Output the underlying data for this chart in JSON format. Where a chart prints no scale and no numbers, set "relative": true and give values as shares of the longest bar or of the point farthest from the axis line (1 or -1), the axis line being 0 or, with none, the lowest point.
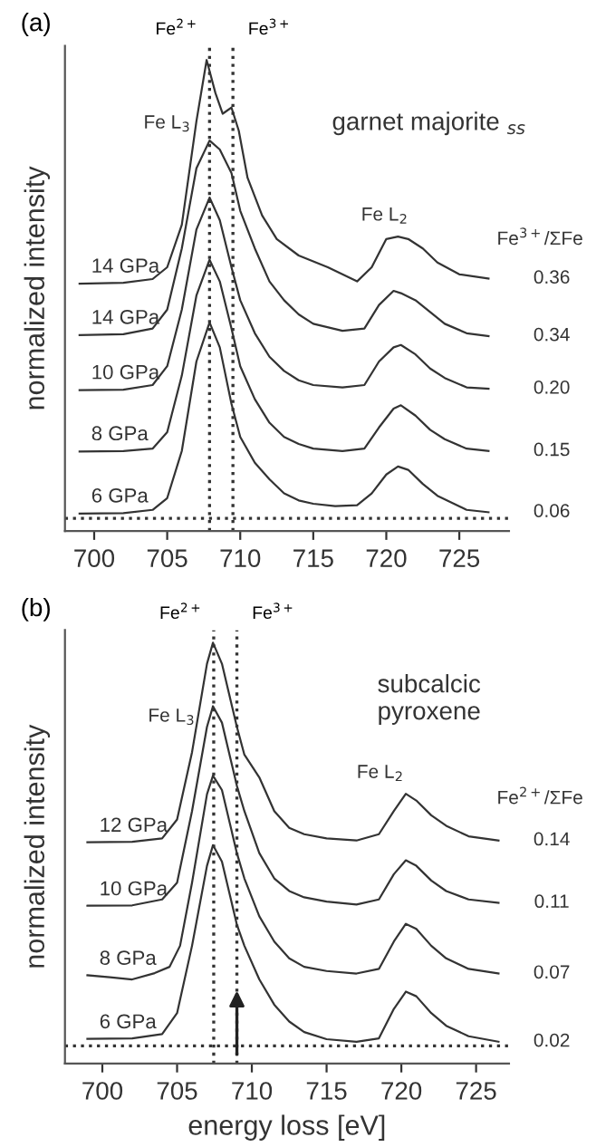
{
  "chart_data": [
    {
      "type": "line",
      "title": "(a)",
      "subtitle": "garnet majorite $_{ss}$",
      "ylabel": "normalized intensity",
      "relative": true,
      "xlim": [
        698,
        728.4
      ],
      "xticks": [
        700,
        705,
        710,
        715,
        720,
        725
      ],
      "grid": false,
      "legend": false,
      "marker": "none",
      "line_style": "solid",
      "ref_lines": [
        {
          "axis": "x",
          "value": 707.9,
          "label": "Fe$^{2+}$",
          "line_style": "dotted",
          "color": "#333333"
        },
        {
          "axis": "x",
          "value": 709.5,
          "label": "Fe$^{3+}$",
          "line_style": "dotted",
          "color": "#333333"
        },
        {
          "axis": "y",
          "value": 0.027,
          "label": null,
          "line_style": "dotted",
          "color": "#333333"
        }
      ],
      "annotations": [
        "Fe L$_{3}$",
        "Fe L$_{2}$",
        "Fe$^{3+}$/ΣFe",
        "0.36",
        "0.34",
        "0.20",
        "0.15",
        "0.06"
      ],
      "series": [
        {
          "name": "14 GPa",
          "color": "#333333",
          "x": [
            699,
            702,
            704,
            705,
            706,
            707,
            707.7,
            708.3,
            708.8,
            709.4,
            709.9,
            710.5,
            711.5,
            712.5,
            714,
            716,
            718,
            719,
            720,
            720.8,
            721.5,
            722.5,
            723.5,
            725,
            727
          ],
          "values": [
            0.525,
            0.527,
            0.535,
            0.56,
            0.65,
            0.87,
            1.0,
            0.93,
            0.886,
            0.899,
            0.85,
            0.75,
            0.67,
            0.62,
            0.585,
            0.56,
            0.53,
            0.56,
            0.62,
            0.625,
            0.62,
            0.6,
            0.57,
            0.545,
            0.536
          ]
        },
        {
          "name": "14 GPa",
          "color": "#333333",
          "x": [
            699,
            702,
            704,
            705,
            706,
            707,
            707.9,
            708.6,
            709.4,
            710,
            711,
            712,
            713,
            714,
            715,
            717,
            718.5,
            719.5,
            720.5,
            721,
            722,
            723,
            724,
            725.5,
            727
          ],
          "values": [
            0.416,
            0.418,
            0.43,
            0.47,
            0.6,
            0.77,
            0.829,
            0.81,
            0.76,
            0.68,
            0.6,
            0.53,
            0.49,
            0.46,
            0.44,
            0.425,
            0.43,
            0.48,
            0.51,
            0.505,
            0.49,
            0.465,
            0.44,
            0.42,
            0.414
          ]
        },
        {
          "name": "10 GPa",
          "color": "#333333",
          "x": [
            699,
            702,
            704,
            705,
            706,
            707,
            707.9,
            708.6,
            709.4,
            710,
            711,
            712,
            713,
            714,
            715,
            717,
            718.5,
            719.5,
            720.5,
            721,
            722,
            723,
            724,
            725.5,
            727
          ],
          "values": [
            0.299,
            0.3,
            0.31,
            0.35,
            0.47,
            0.64,
            0.708,
            0.66,
            0.56,
            0.49,
            0.42,
            0.37,
            0.34,
            0.32,
            0.31,
            0.305,
            0.31,
            0.36,
            0.39,
            0.395,
            0.375,
            0.345,
            0.325,
            0.305,
            0.302
          ]
        },
        {
          "name": "8 GPa",
          "color": "#333333",
          "x": [
            699,
            702,
            704,
            705,
            706,
            707,
            707.9,
            708.6,
            709.4,
            710,
            711,
            712,
            713,
            714,
            715,
            717,
            718.5,
            719.5,
            720.5,
            721,
            722,
            723,
            724,
            725.5,
            727
          ],
          "values": [
            0.169,
            0.17,
            0.175,
            0.21,
            0.33,
            0.5,
            0.576,
            0.53,
            0.43,
            0.35,
            0.28,
            0.23,
            0.2,
            0.185,
            0.175,
            0.17,
            0.175,
            0.22,
            0.26,
            0.267,
            0.245,
            0.215,
            0.195,
            0.175,
            0.17
          ]
        },
        {
          "name": "6 GPa",
          "color": "#333333",
          "x": [
            699,
            702,
            704,
            705,
            706,
            707,
            707.9,
            708.6,
            709.4,
            710,
            711,
            712,
            713,
            714,
            715,
            716.5,
            718,
            719,
            720,
            720.8,
            721.5,
            722.5,
            723.5,
            724.5,
            725.5,
            727
          ],
          "values": [
            0.037,
            0.038,
            0.045,
            0.07,
            0.17,
            0.36,
            0.443,
            0.39,
            0.27,
            0.2,
            0.145,
            0.11,
            0.08,
            0.065,
            0.058,
            0.053,
            0.055,
            0.08,
            0.12,
            0.137,
            0.13,
            0.1,
            0.075,
            0.06,
            0.045,
            0.04
          ]
        }
      ]
    },
    {
      "type": "line",
      "title": "(b)",
      "subtitle": "subcalcic\npyroxene",
      "xlabel": "energy loss [eV]",
      "ylabel": "normalized intensity",
      "relative": true,
      "xlim": [
        697.5,
        727.2
      ],
      "xticks": [
        700,
        705,
        710,
        715,
        720,
        725
      ],
      "grid": false,
      "legend": false,
      "marker": "none",
      "line_style": "solid",
      "ref_lines": [
        {
          "axis": "x",
          "value": 707.45,
          "label": "Fe$^{2+}$",
          "line_style": "dotted",
          "color": "#333333"
        },
        {
          "axis": "x",
          "value": 709.0,
          "label": "Fe$^{3+}$",
          "line_style": "dotted",
          "color": "#333333"
        },
        {
          "axis": "y",
          "value": 0.042,
          "label": null,
          "line_style": "dotted",
          "color": "#333333"
        }
      ],
      "annotations": [
        "Fe L$_{3}$",
        "Fe L$_{2}$",
        "Fe$^{2+}$/ΣFe",
        "0.14",
        "0.11",
        "0.07",
        "0.02"
      ],
      "series": [
        {
          "name": "12 GPa",
          "color": "#333333",
          "x": [
            699,
            702,
            704,
            705,
            706,
            707,
            707.4,
            708,
            709,
            709.5,
            710.5,
            711.5,
            712.5,
            713.5,
            715,
            717,
            718.5,
            719.5,
            720.3,
            721,
            722,
            723,
            724.5,
            726.5
          ],
          "values": [
            0.526,
            0.527,
            0.535,
            0.58,
            0.74,
            0.95,
            1.0,
            0.95,
            0.8,
            0.734,
            0.68,
            0.6,
            0.56,
            0.545,
            0.535,
            0.53,
            0.545,
            0.6,
            0.641,
            0.625,
            0.59,
            0.565,
            0.54,
            0.53
          ]
        },
        {
          "name": "10 GPa",
          "color": "#333333",
          "x": [
            699,
            702,
            704,
            705,
            706,
            707,
            707.4,
            708,
            709,
            709.5,
            710.5,
            711.5,
            712.5,
            713.5,
            715,
            717,
            718.5,
            719.5,
            720.3,
            721,
            722,
            723,
            724.5,
            726.5
          ],
          "values": [
            0.375,
            0.376,
            0.39,
            0.43,
            0.6,
            0.8,
            0.849,
            0.81,
            0.66,
            0.6,
            0.5,
            0.44,
            0.41,
            0.395,
            0.385,
            0.378,
            0.39,
            0.45,
            0.483,
            0.47,
            0.435,
            0.41,
            0.39,
            0.382
          ]
        },
        {
          "name": "8 GPa",
          "color": "#333333",
          "x": [
            699,
            700.5,
            702,
            703.5,
            704.5,
            705.2,
            706,
            707,
            707.4,
            708,
            709,
            709.5,
            710.5,
            711.5,
            712.5,
            713.5,
            715,
            717,
            718.5,
            719.5,
            720.3,
            721,
            722,
            723,
            724.5,
            726.5
          ],
          "values": [
            0.21,
            0.205,
            0.2,
            0.215,
            0.23,
            0.28,
            0.43,
            0.64,
            0.684,
            0.65,
            0.5,
            0.44,
            0.35,
            0.29,
            0.25,
            0.23,
            0.22,
            0.214,
            0.225,
            0.29,
            0.332,
            0.32,
            0.28,
            0.25,
            0.225,
            0.214
          ]
        },
        {
          "name": "6 GPa",
          "color": "#333333",
          "x": [
            699,
            702,
            704,
            705,
            706,
            707,
            707.4,
            708,
            709,
            709.5,
            710.5,
            711.5,
            712.5,
            713.5,
            715,
            717,
            718.5,
            719.5,
            720.3,
            721,
            722,
            723,
            724.5,
            726.5
          ],
          "values": [
            0.059,
            0.06,
            0.07,
            0.12,
            0.28,
            0.47,
            0.519,
            0.48,
            0.33,
            0.28,
            0.2,
            0.14,
            0.1,
            0.075,
            0.058,
            0.052,
            0.06,
            0.13,
            0.171,
            0.16,
            0.12,
            0.09,
            0.065,
            0.052
          ]
        }
      ]
    }
  ]
}
